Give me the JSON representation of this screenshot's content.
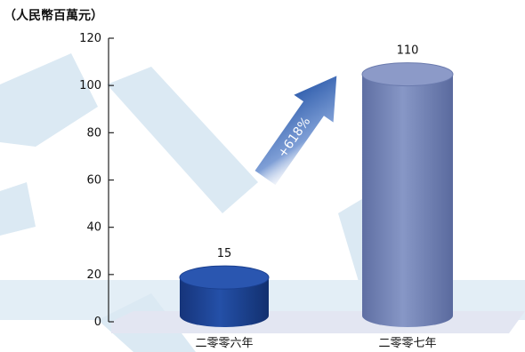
{
  "chart_data": {
    "type": "bar",
    "unit_label": "（人民幣百萬元）",
    "categories": [
      "二零零六年",
      "二零零七年"
    ],
    "values": [
      15,
      110
    ],
    "value_labels": [
      "15",
      "110"
    ],
    "ylim": [
      0,
      120
    ],
    "yticks": [
      "0",
      "20",
      "40",
      "60",
      "80",
      "100",
      "120"
    ],
    "annotation": "+618%",
    "grid": false,
    "colors": {
      "bar_2006": "#1a3f8e",
      "bar_2007": "#7383b5",
      "arrow": "#1d4ea3",
      "watermark": "#d9e8f2",
      "floor": "#e3e6f2"
    }
  }
}
